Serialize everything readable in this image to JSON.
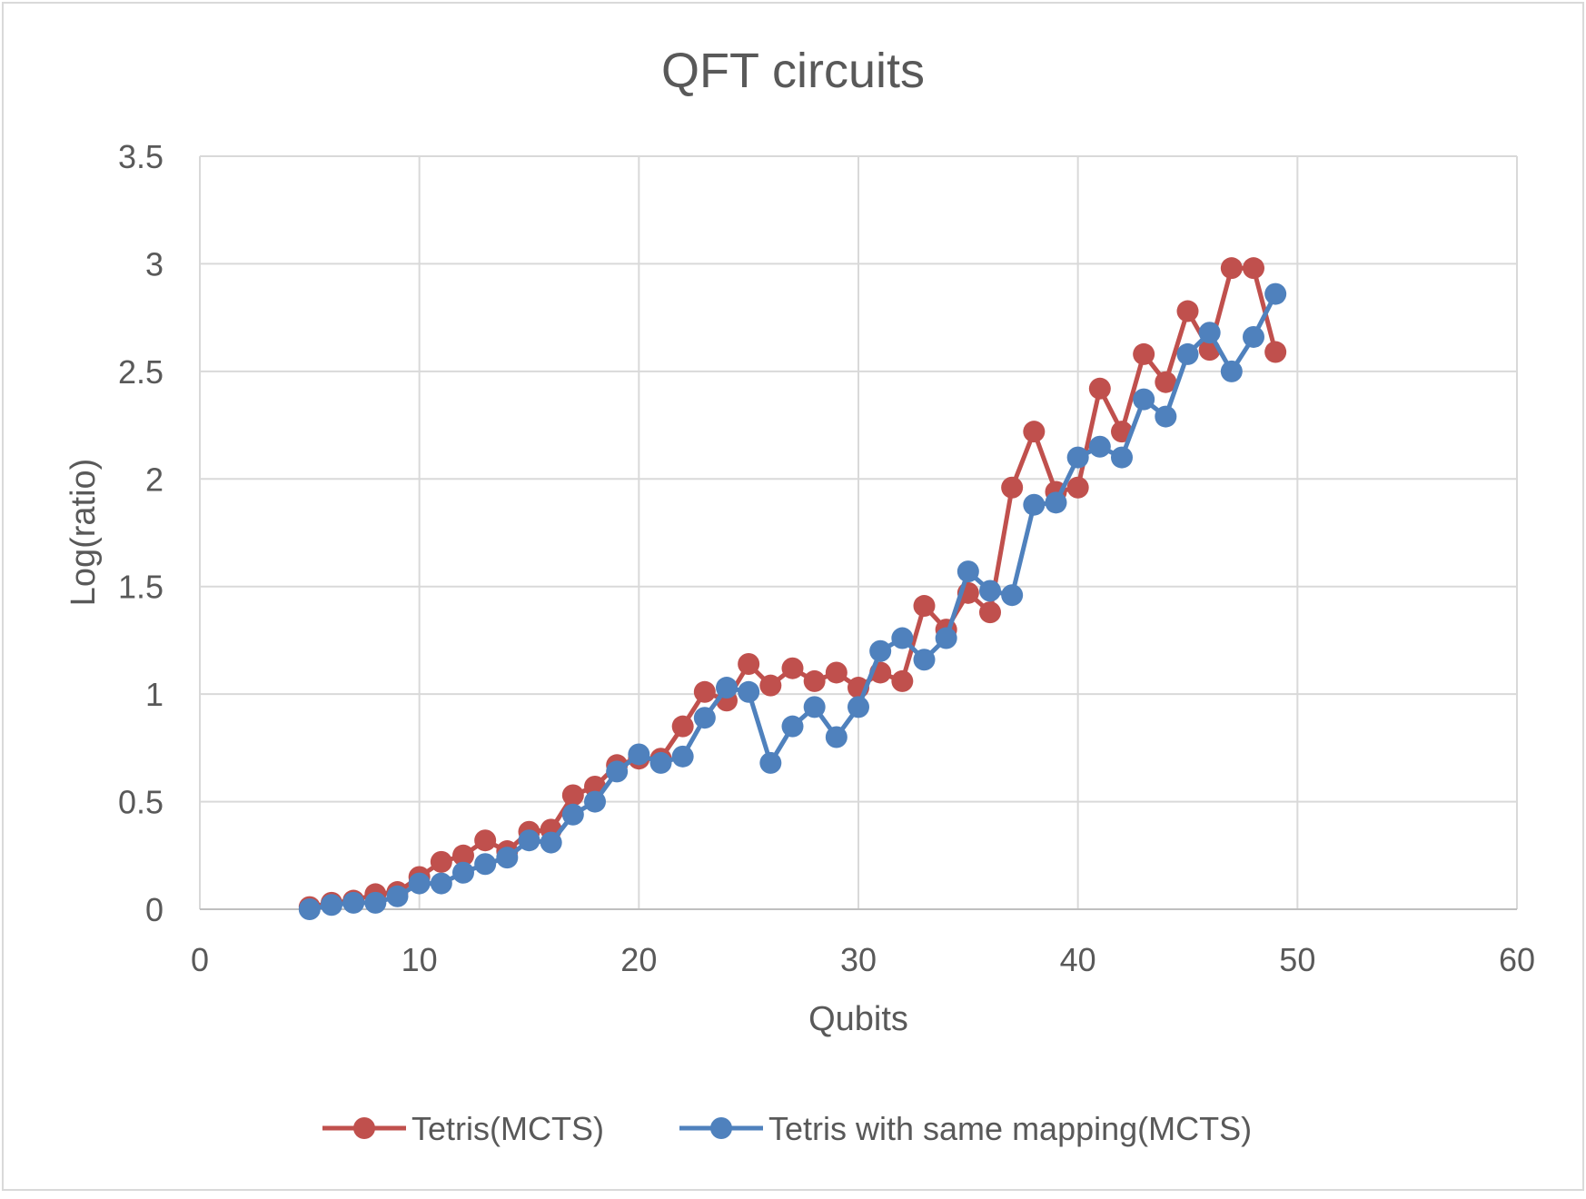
{
  "chart_data": {
    "type": "line",
    "title": "QFT circuits",
    "xlabel": "Qubits",
    "ylabel": "Log(ratio)",
    "xlim": [
      0,
      60
    ],
    "ylim": [
      0,
      3.5
    ],
    "xticks": [
      0,
      10,
      20,
      30,
      40,
      50,
      60
    ],
    "yticks": [
      0,
      0.5,
      1,
      1.5,
      2,
      2.5,
      3,
      3.5
    ],
    "xtick_labels": [
      "0",
      "10",
      "20",
      "30",
      "40",
      "50",
      "60"
    ],
    "ytick_labels": [
      "0",
      "0.5",
      "1",
      "1.5",
      "2",
      "2.5",
      "3",
      "3.5"
    ],
    "grid": true,
    "legend_position": "bottom",
    "x": [
      5,
      6,
      7,
      8,
      9,
      10,
      11,
      12,
      13,
      14,
      15,
      16,
      17,
      18,
      19,
      20,
      21,
      22,
      23,
      24,
      25,
      26,
      27,
      28,
      29,
      30,
      31,
      32,
      33,
      34,
      35,
      36,
      37,
      38,
      39,
      40,
      41,
      42,
      43,
      44,
      45,
      46,
      47,
      48,
      49
    ],
    "series": [
      {
        "name": "Tetris(MCTS)",
        "color": "#c0504d",
        "values": [
          0.01,
          0.03,
          0.04,
          0.07,
          0.08,
          0.15,
          0.22,
          0.25,
          0.32,
          0.27,
          0.36,
          0.37,
          0.53,
          0.57,
          0.67,
          0.7,
          0.7,
          0.85,
          1.01,
          0.97,
          1.14,
          1.04,
          1.12,
          1.06,
          1.1,
          1.03,
          1.1,
          1.06,
          1.41,
          1.3,
          1.47,
          1.38,
          1.96,
          2.22,
          1.94,
          1.96,
          2.42,
          2.22,
          2.58,
          2.45,
          2.78,
          2.6,
          2.98,
          2.98,
          2.59
        ]
      },
      {
        "name": "Tetris with same mapping(MCTS)",
        "color": "#4f81bd",
        "values": [
          0.0,
          0.02,
          0.03,
          0.03,
          0.06,
          0.12,
          0.12,
          0.17,
          0.21,
          0.24,
          0.32,
          0.31,
          0.44,
          0.5,
          0.64,
          0.72,
          0.68,
          0.71,
          0.89,
          1.03,
          1.01,
          0.68,
          0.85,
          0.94,
          0.8,
          0.94,
          1.2,
          1.26,
          1.16,
          1.26,
          1.57,
          1.48,
          1.46,
          1.88,
          1.89,
          2.1,
          2.15,
          2.1,
          2.37,
          2.29,
          2.58,
          2.68,
          2.5,
          2.66,
          2.86
        ]
      }
    ]
  }
}
